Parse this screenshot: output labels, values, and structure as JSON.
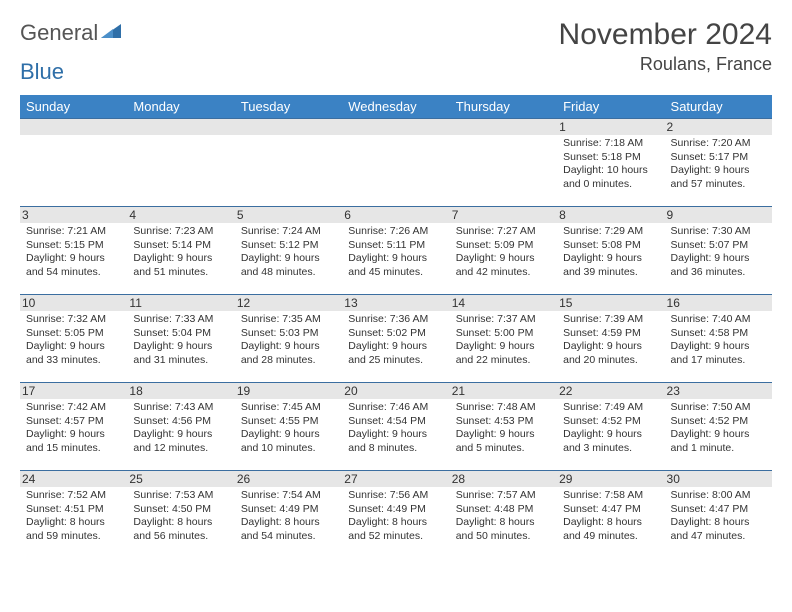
{
  "logo": {
    "part1": "General",
    "part2": "Blue"
  },
  "title": "November 2024",
  "location": "Roulans, France",
  "dayHeaders": [
    "Sunday",
    "Monday",
    "Tuesday",
    "Wednesday",
    "Thursday",
    "Friday",
    "Saturday"
  ],
  "colors": {
    "headerBg": "#3b82c4",
    "headerText": "#ffffff",
    "spacerBg": "#e6e6e6",
    "borderTop": "#3b6ea0",
    "logoBlue": "#2f6fa8"
  },
  "weeks": [
    [
      null,
      null,
      null,
      null,
      null,
      {
        "n": "1",
        "sr": "Sunrise: 7:18 AM",
        "ss": "Sunset: 5:18 PM",
        "d1": "Daylight: 10 hours",
        "d2": "and 0 minutes."
      },
      {
        "n": "2",
        "sr": "Sunrise: 7:20 AM",
        "ss": "Sunset: 5:17 PM",
        "d1": "Daylight: 9 hours",
        "d2": "and 57 minutes."
      }
    ],
    [
      {
        "n": "3",
        "sr": "Sunrise: 7:21 AM",
        "ss": "Sunset: 5:15 PM",
        "d1": "Daylight: 9 hours",
        "d2": "and 54 minutes."
      },
      {
        "n": "4",
        "sr": "Sunrise: 7:23 AM",
        "ss": "Sunset: 5:14 PM",
        "d1": "Daylight: 9 hours",
        "d2": "and 51 minutes."
      },
      {
        "n": "5",
        "sr": "Sunrise: 7:24 AM",
        "ss": "Sunset: 5:12 PM",
        "d1": "Daylight: 9 hours",
        "d2": "and 48 minutes."
      },
      {
        "n": "6",
        "sr": "Sunrise: 7:26 AM",
        "ss": "Sunset: 5:11 PM",
        "d1": "Daylight: 9 hours",
        "d2": "and 45 minutes."
      },
      {
        "n": "7",
        "sr": "Sunrise: 7:27 AM",
        "ss": "Sunset: 5:09 PM",
        "d1": "Daylight: 9 hours",
        "d2": "and 42 minutes."
      },
      {
        "n": "8",
        "sr": "Sunrise: 7:29 AM",
        "ss": "Sunset: 5:08 PM",
        "d1": "Daylight: 9 hours",
        "d2": "and 39 minutes."
      },
      {
        "n": "9",
        "sr": "Sunrise: 7:30 AM",
        "ss": "Sunset: 5:07 PM",
        "d1": "Daylight: 9 hours",
        "d2": "and 36 minutes."
      }
    ],
    [
      {
        "n": "10",
        "sr": "Sunrise: 7:32 AM",
        "ss": "Sunset: 5:05 PM",
        "d1": "Daylight: 9 hours",
        "d2": "and 33 minutes."
      },
      {
        "n": "11",
        "sr": "Sunrise: 7:33 AM",
        "ss": "Sunset: 5:04 PM",
        "d1": "Daylight: 9 hours",
        "d2": "and 31 minutes."
      },
      {
        "n": "12",
        "sr": "Sunrise: 7:35 AM",
        "ss": "Sunset: 5:03 PM",
        "d1": "Daylight: 9 hours",
        "d2": "and 28 minutes."
      },
      {
        "n": "13",
        "sr": "Sunrise: 7:36 AM",
        "ss": "Sunset: 5:02 PM",
        "d1": "Daylight: 9 hours",
        "d2": "and 25 minutes."
      },
      {
        "n": "14",
        "sr": "Sunrise: 7:37 AM",
        "ss": "Sunset: 5:00 PM",
        "d1": "Daylight: 9 hours",
        "d2": "and 22 minutes."
      },
      {
        "n": "15",
        "sr": "Sunrise: 7:39 AM",
        "ss": "Sunset: 4:59 PM",
        "d1": "Daylight: 9 hours",
        "d2": "and 20 minutes."
      },
      {
        "n": "16",
        "sr": "Sunrise: 7:40 AM",
        "ss": "Sunset: 4:58 PM",
        "d1": "Daylight: 9 hours",
        "d2": "and 17 minutes."
      }
    ],
    [
      {
        "n": "17",
        "sr": "Sunrise: 7:42 AM",
        "ss": "Sunset: 4:57 PM",
        "d1": "Daylight: 9 hours",
        "d2": "and 15 minutes."
      },
      {
        "n": "18",
        "sr": "Sunrise: 7:43 AM",
        "ss": "Sunset: 4:56 PM",
        "d1": "Daylight: 9 hours",
        "d2": "and 12 minutes."
      },
      {
        "n": "19",
        "sr": "Sunrise: 7:45 AM",
        "ss": "Sunset: 4:55 PM",
        "d1": "Daylight: 9 hours",
        "d2": "and 10 minutes."
      },
      {
        "n": "20",
        "sr": "Sunrise: 7:46 AM",
        "ss": "Sunset: 4:54 PM",
        "d1": "Daylight: 9 hours",
        "d2": "and 8 minutes."
      },
      {
        "n": "21",
        "sr": "Sunrise: 7:48 AM",
        "ss": "Sunset: 4:53 PM",
        "d1": "Daylight: 9 hours",
        "d2": "and 5 minutes."
      },
      {
        "n": "22",
        "sr": "Sunrise: 7:49 AM",
        "ss": "Sunset: 4:52 PM",
        "d1": "Daylight: 9 hours",
        "d2": "and 3 minutes."
      },
      {
        "n": "23",
        "sr": "Sunrise: 7:50 AM",
        "ss": "Sunset: 4:52 PM",
        "d1": "Daylight: 9 hours",
        "d2": "and 1 minute."
      }
    ],
    [
      {
        "n": "24",
        "sr": "Sunrise: 7:52 AM",
        "ss": "Sunset: 4:51 PM",
        "d1": "Daylight: 8 hours",
        "d2": "and 59 minutes."
      },
      {
        "n": "25",
        "sr": "Sunrise: 7:53 AM",
        "ss": "Sunset: 4:50 PM",
        "d1": "Daylight: 8 hours",
        "d2": "and 56 minutes."
      },
      {
        "n": "26",
        "sr": "Sunrise: 7:54 AM",
        "ss": "Sunset: 4:49 PM",
        "d1": "Daylight: 8 hours",
        "d2": "and 54 minutes."
      },
      {
        "n": "27",
        "sr": "Sunrise: 7:56 AM",
        "ss": "Sunset: 4:49 PM",
        "d1": "Daylight: 8 hours",
        "d2": "and 52 minutes."
      },
      {
        "n": "28",
        "sr": "Sunrise: 7:57 AM",
        "ss": "Sunset: 4:48 PM",
        "d1": "Daylight: 8 hours",
        "d2": "and 50 minutes."
      },
      {
        "n": "29",
        "sr": "Sunrise: 7:58 AM",
        "ss": "Sunset: 4:47 PM",
        "d1": "Daylight: 8 hours",
        "d2": "and 49 minutes."
      },
      {
        "n": "30",
        "sr": "Sunrise: 8:00 AM",
        "ss": "Sunset: 4:47 PM",
        "d1": "Daylight: 8 hours",
        "d2": "and 47 minutes."
      }
    ]
  ]
}
